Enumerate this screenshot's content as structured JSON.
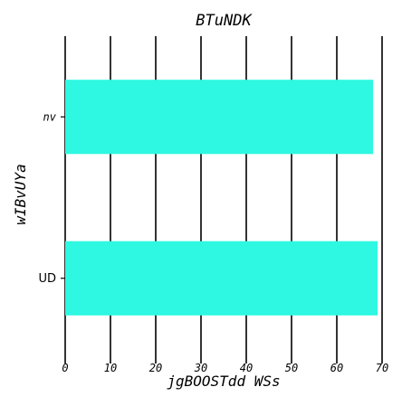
{
  "chart_data": {
    "type": "bar",
    "orientation": "horizontal",
    "title": "BTuNDK",
    "xlabel": "jgBOOSTdd WSs",
    "ylabel": "wIBvUYa",
    "categories": [
      "nv",
      "UD"
    ],
    "values": [
      68,
      69
    ],
    "xlim": [
      0,
      70
    ],
    "xticks": [
      0,
      10,
      20,
      30,
      40,
      50,
      60,
      70
    ],
    "grid": "vertical",
    "bar_color": "#2ef8e1"
  }
}
